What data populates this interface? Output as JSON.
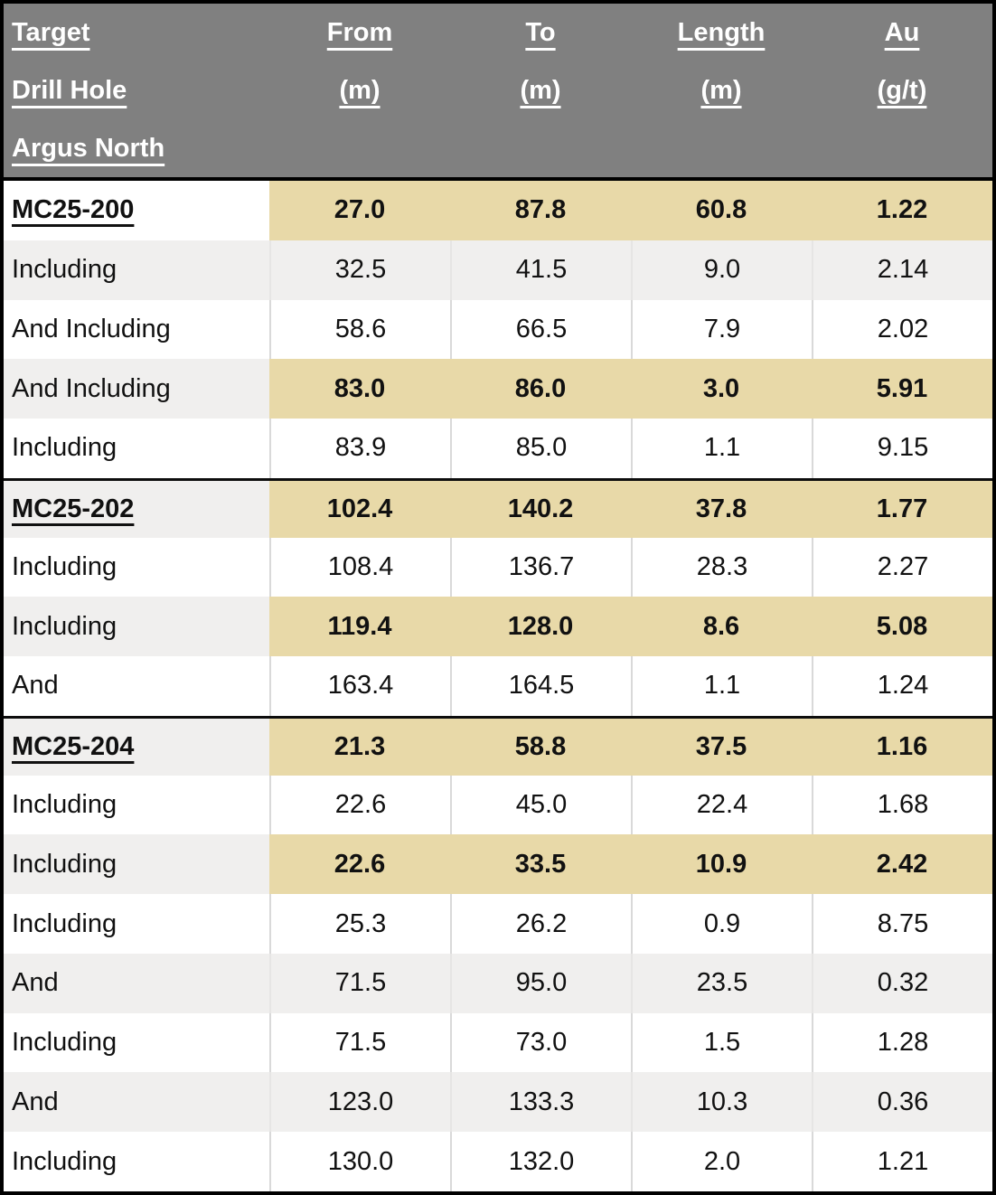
{
  "table": {
    "title": "Drill hole assay results table",
    "colors": {
      "header_background": "#808080",
      "header_text": "#ffffff",
      "highlight_tan": "#e8d9a8",
      "zebra_gray": "#f0efee",
      "outer_border": "#000000",
      "cell_divider": "#d9d9d9",
      "body_text": "#111111"
    },
    "header": {
      "target_label": "Target",
      "drill_hole_label": "Drill Hole",
      "section_label": "Argus North",
      "columns": [
        {
          "title": "From",
          "unit": "(m)"
        },
        {
          "title": "To",
          "unit": "(m)"
        },
        {
          "title": "Length",
          "unit": "(m)"
        },
        {
          "title": "Au",
          "unit": "(g/t)"
        }
      ]
    },
    "rows": [
      {
        "label": "MC25-200",
        "from_m": "27.0",
        "to_m": "87.8",
        "length_m": "60.8",
        "au_gpt": "1.22",
        "is_drill_hole": true,
        "highlighted": true,
        "section_start": false
      },
      {
        "label": "Including",
        "from_m": "32.5",
        "to_m": "41.5",
        "length_m": "9.0",
        "au_gpt": "2.14",
        "is_drill_hole": false,
        "highlighted": false,
        "section_start": false
      },
      {
        "label": "And Including",
        "from_m": "58.6",
        "to_m": "66.5",
        "length_m": "7.9",
        "au_gpt": "2.02",
        "is_drill_hole": false,
        "highlighted": false,
        "section_start": false
      },
      {
        "label": "And Including",
        "from_m": "83.0",
        "to_m": "86.0",
        "length_m": "3.0",
        "au_gpt": "5.91",
        "is_drill_hole": false,
        "highlighted": true,
        "section_start": false
      },
      {
        "label": "Including",
        "from_m": "83.9",
        "to_m": "85.0",
        "length_m": "1.1",
        "au_gpt": "9.15",
        "is_drill_hole": false,
        "highlighted": false,
        "section_start": false
      },
      {
        "label": "MC25-202",
        "from_m": "102.4",
        "to_m": "140.2",
        "length_m": "37.8",
        "au_gpt": "1.77",
        "is_drill_hole": true,
        "highlighted": true,
        "section_start": true
      },
      {
        "label": "Including",
        "from_m": "108.4",
        "to_m": "136.7",
        "length_m": "28.3",
        "au_gpt": "2.27",
        "is_drill_hole": false,
        "highlighted": false,
        "section_start": false
      },
      {
        "label": "Including",
        "from_m": "119.4",
        "to_m": "128.0",
        "length_m": "8.6",
        "au_gpt": "5.08",
        "is_drill_hole": false,
        "highlighted": true,
        "section_start": false
      },
      {
        "label": "And",
        "from_m": "163.4",
        "to_m": "164.5",
        "length_m": "1.1",
        "au_gpt": "1.24",
        "is_drill_hole": false,
        "highlighted": false,
        "section_start": false
      },
      {
        "label": "MC25-204",
        "from_m": "21.3",
        "to_m": "58.8",
        "length_m": "37.5",
        "au_gpt": "1.16",
        "is_drill_hole": true,
        "highlighted": true,
        "section_start": true
      },
      {
        "label": "Including",
        "from_m": "22.6",
        "to_m": "45.0",
        "length_m": "22.4",
        "au_gpt": "1.68",
        "is_drill_hole": false,
        "highlighted": false,
        "section_start": false
      },
      {
        "label": "Including",
        "from_m": "22.6",
        "to_m": "33.5",
        "length_m": "10.9",
        "au_gpt": "2.42",
        "is_drill_hole": false,
        "highlighted": true,
        "section_start": false
      },
      {
        "label": "Including",
        "from_m": "25.3",
        "to_m": "26.2",
        "length_m": "0.9",
        "au_gpt": "8.75",
        "is_drill_hole": false,
        "highlighted": false,
        "section_start": false
      },
      {
        "label": "And",
        "from_m": "71.5",
        "to_m": "95.0",
        "length_m": "23.5",
        "au_gpt": "0.32",
        "is_drill_hole": false,
        "highlighted": false,
        "section_start": false
      },
      {
        "label": "Including",
        "from_m": "71.5",
        "to_m": "73.0",
        "length_m": "1.5",
        "au_gpt": "1.28",
        "is_drill_hole": false,
        "highlighted": false,
        "section_start": false
      },
      {
        "label": "And",
        "from_m": "123.0",
        "to_m": "133.3",
        "length_m": "10.3",
        "au_gpt": "0.36",
        "is_drill_hole": false,
        "highlighted": false,
        "section_start": false
      },
      {
        "label": "Including",
        "from_m": "130.0",
        "to_m": "132.0",
        "length_m": "2.0",
        "au_gpt": "1.21",
        "is_drill_hole": false,
        "highlighted": false,
        "section_start": false
      }
    ]
  }
}
